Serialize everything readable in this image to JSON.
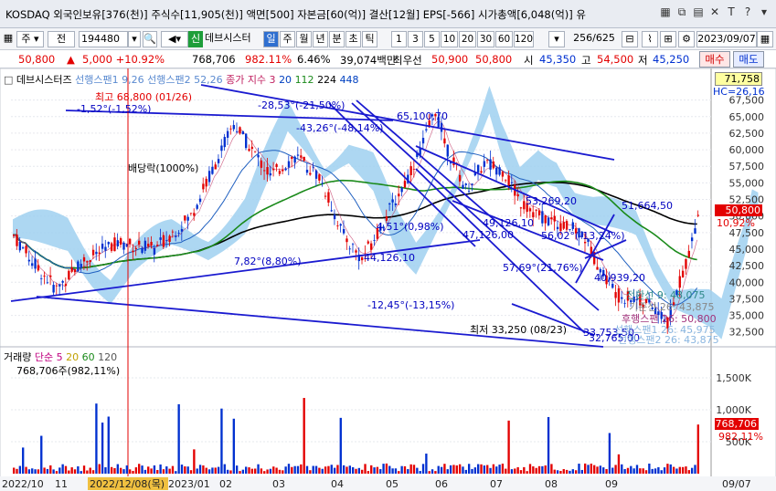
{
  "titlebar": {
    "title": "KOSDAQ 외국인보유[376(천)] 주식수[11,905(천)] 액면[500] 자본금[60(억)] 결산[12월] EPS[-566] 시가총액[6,048(억)] 유",
    "icons": [
      "grid-icon",
      "copy-icon",
      "chart-type-icon",
      "close-tab-icon",
      "text-icon",
      "question-icon",
      "more-icon"
    ]
  },
  "toolbar": {
    "market_select": "주",
    "prev_label": "전",
    "code": "194480",
    "name_label": "신",
    "stock_name": "데브시스터",
    "periods": [
      "일",
      "주",
      "월",
      "년",
      "분",
      "초",
      "틱"
    ],
    "active_period": "일",
    "nums": [
      "1",
      "3",
      "5",
      "10",
      "20",
      "30",
      "60",
      "120"
    ],
    "page_count": "256/625",
    "date": "2023/09/07"
  },
  "quote": {
    "price": "50,800",
    "arrow": "▲",
    "change": "5,000 +10.92%",
    "volume": "768,706",
    "vol_pct": "982.11%",
    "turnover": "6.46%",
    "amount": "39,074백만",
    "best_sell_label": "최우선",
    "best_sell": "50,900",
    "best_buy": "50,800",
    "open_label": "시",
    "open": "45,350",
    "high_label": "고",
    "high": "54,500",
    "low_label": "저",
    "low": "45,250",
    "buy_btn": "매수",
    "sell_btn": "매도"
  },
  "price_panel": {
    "legend": "데브시스터즈",
    "legend2": "선행스팬1 9,26 선행스팬2 52,26",
    "legend3": "종가 지수 3",
    "legend_ma": [
      "20",
      "112",
      "224",
      "448"
    ],
    "top_value": "71,758",
    "hc_label": "HC=26,16",
    "max_label": "최고 68,800 (01/26)",
    "min_label": "최저 33,250 (08/23)",
    "dividend_label": "배당락(1000%)",
    "annotations": [
      {
        "text": "-1,52°(-1,52%)",
        "color": "#0000c0"
      },
      {
        "text": "-28,53°(-21,50%)",
        "color": "#0000c0"
      },
      {
        "text": "65,100,70",
        "color": "#0000c0"
      },
      {
        "text": "-43,26°(-48,14%)",
        "color": "#0000c0"
      },
      {
        "text": "53,269,20",
        "color": "#0000c0"
      },
      {
        "text": "51,664,50",
        "color": "#0000c0"
      },
      {
        "text": "4,51°(0,98%)",
        "color": "#0000c0"
      },
      {
        "text": "49,126,10",
        "color": "#0000c0"
      },
      {
        "text": "47,126,00",
        "color": "#0000c0"
      },
      {
        "text": "56,02°(-13,24%)",
        "color": "#0000c0"
      },
      {
        "text": "7,82°(8,80%)",
        "color": "#0000c0"
      },
      {
        "text": "44,126,10",
        "color": "#0000c0"
      },
      {
        "text": "57,69°(21,76%)",
        "color": "#0000c0"
      },
      {
        "text": "40,939,20",
        "color": "#0000c0"
      },
      {
        "text": "-12,45°(-13,15%)",
        "color": "#0000c0"
      },
      {
        "text": "33,753,50",
        "color": "#0000c0"
      },
      {
        "text": "32,765,00",
        "color": "#0000c0"
      }
    ],
    "ichimoku_labels": [
      {
        "text": "전환선 9: 48,075",
        "color": "#2f8a8a"
      },
      {
        "text": "기준선 26: 43,875",
        "color": "#888888"
      },
      {
        "text": "후행스팬 26: 50,800",
        "color": "#a0307a"
      },
      {
        "text": "선행스팬1 26: 45,975",
        "color": "#8ab6e0"
      },
      {
        "text": "선행스팬2 26: 43,875",
        "color": "#8ab6e0"
      }
    ],
    "current_price_tag": "50,800",
    "current_pct_tag": "10,92%",
    "y_ticks": [
      "67,500",
      "65,000",
      "62,500",
      "60,000",
      "57,500",
      "55,000",
      "52,500",
      "50,000",
      "47,500",
      "45,000",
      "42,500",
      "40,000",
      "37,500",
      "35,000",
      "32,500"
    ]
  },
  "volume_panel": {
    "legend": "거래량",
    "legend_ma": [
      "단순 5",
      "20",
      "60",
      "120"
    ],
    "legend_value": "768,706주(982,11%)",
    "y_ticks": [
      "1,500K",
      "1,000K",
      "500K"
    ],
    "current_tag": "768,706",
    "current_pct": "982,11%"
  },
  "xaxis": {
    "labels": [
      "2022/10",
      "11",
      "2022/12/08(목)",
      "2023/01",
      "02",
      "03",
      "04",
      "05",
      "06",
      "07",
      "08",
      "09"
    ],
    "right_label": "09/07"
  },
  "colors": {
    "up": "#e30000",
    "down": "#0030d0",
    "cloud": "#9fd0f0",
    "ma_black": "#000000",
    "ma_green": "#1a8a1a",
    "trend": "#1a1ad0",
    "selected_date_bg": "#f0c040"
  }
}
